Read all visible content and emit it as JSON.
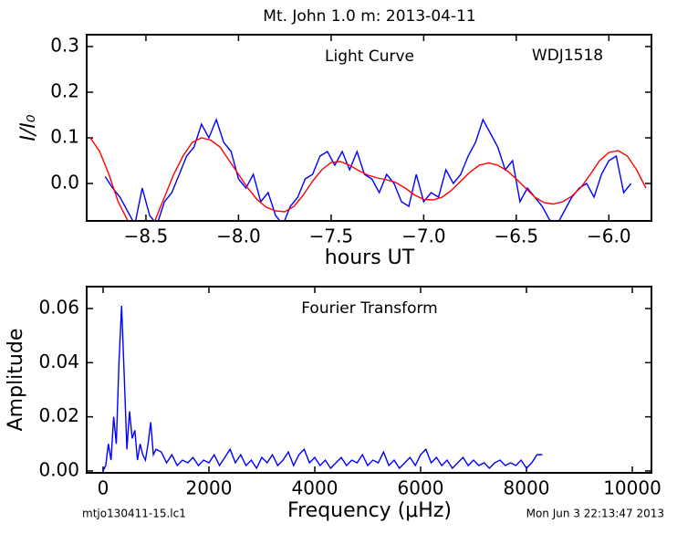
{
  "chart_data": [
    {
      "type": "line",
      "title": "Mt. John 1.0 m:  2013-04-11",
      "xlabel": "hours UT",
      "ylabel": "I/I₀",
      "annotations": [
        "Light Curve",
        "WDJ1518"
      ],
      "xlim": [
        -8.82,
        -5.77
      ],
      "ylim": [
        -0.082,
        0.326
      ],
      "xticks": [
        {
          "value": -8.5,
          "label": "−8.5"
        },
        {
          "value": -8.0,
          "label": "−8.0"
        },
        {
          "value": -7.5,
          "label": "−7.5"
        },
        {
          "value": -7.0,
          "label": "−7.0"
        },
        {
          "value": -6.5,
          "label": "−6.5"
        },
        {
          "value": -6.0,
          "label": "−6.0"
        }
      ],
      "yticks": [
        {
          "value": 0,
          "label": "0.0"
        },
        {
          "value": 0.1,
          "label": "0.1"
        },
        {
          "value": 0.2,
          "label": "0.2"
        },
        {
          "value": 0.3,
          "label": "0.3"
        }
      ],
      "series": [
        {
          "color": "#0000ff",
          "x": [
            -8.72,
            -8.68,
            -8.64,
            -8.6,
            -8.56,
            -8.52,
            -8.48,
            -8.44,
            -8.4,
            -8.36,
            -8.32,
            -8.28,
            -8.24,
            -8.2,
            -8.16,
            -8.12,
            -8.08,
            -8.04,
            -8.0,
            -7.96,
            -7.92,
            -7.88,
            -7.84,
            -7.8,
            -7.76,
            -7.72,
            -7.68,
            -7.64,
            -7.6,
            -7.56,
            -7.52,
            -7.48,
            -7.44,
            -7.4,
            -7.36,
            -7.32,
            -7.28,
            -7.24,
            -7.2,
            -7.16,
            -7.12,
            -7.08,
            -7.04,
            -7.0,
            -6.96,
            -6.92,
            -6.88,
            -6.84,
            -6.8,
            -6.76,
            -6.72,
            -6.68,
            -6.64,
            -6.6,
            -6.56,
            -6.52,
            -6.48,
            -6.44,
            -6.4,
            -6.36,
            -6.32,
            -6.28,
            -6.24,
            -6.2,
            -6.16,
            -6.12,
            -6.08,
            -6.04,
            -6.0,
            -5.96,
            -5.92,
            -5.88
          ],
          "values": [
            0.015,
            -0.01,
            -0.03,
            -0.06,
            -0.09,
            -0.01,
            -0.07,
            -0.09,
            -0.04,
            -0.02,
            0.02,
            0.06,
            0.08,
            0.13,
            0.1,
            0.14,
            0.09,
            0.07,
            0.01,
            -0.01,
            0.02,
            -0.04,
            -0.02,
            -0.07,
            -0.09,
            -0.05,
            -0.03,
            0.01,
            0.02,
            0.06,
            0.07,
            0.04,
            0.07,
            0.03,
            0.07,
            0.02,
            0.01,
            -0.02,
            0.02,
            0.0,
            -0.04,
            -0.05,
            0.02,
            -0.04,
            -0.02,
            -0.03,
            0.03,
            0.0,
            0.02,
            0.06,
            0.09,
            0.14,
            0.11,
            0.08,
            0.03,
            0.05,
            -0.04,
            -0.01,
            -0.03,
            -0.05,
            -0.08,
            -0.09,
            -0.06,
            -0.03,
            -0.01,
            0.0,
            -0.03,
            0.02,
            0.05,
            0.06,
            -0.02,
            0.0
          ]
        },
        {
          "color": "#ff0000",
          "x": [
            -8.8,
            -8.75,
            -8.7,
            -8.65,
            -8.6,
            -8.55,
            -8.5,
            -8.45,
            -8.4,
            -8.35,
            -8.3,
            -8.25,
            -8.2,
            -8.15,
            -8.1,
            -8.05,
            -8.0,
            -7.95,
            -7.9,
            -7.85,
            -7.8,
            -7.75,
            -7.7,
            -7.65,
            -7.6,
            -7.55,
            -7.5,
            -7.45,
            -7.4,
            -7.35,
            -7.3,
            -7.25,
            -7.2,
            -7.15,
            -7.1,
            -7.05,
            -7.0,
            -6.95,
            -6.9,
            -6.85,
            -6.8,
            -6.75,
            -6.7,
            -6.65,
            -6.6,
            -6.55,
            -6.5,
            -6.45,
            -6.4,
            -6.35,
            -6.3,
            -6.25,
            -6.2,
            -6.15,
            -6.1,
            -6.05,
            -6.0,
            -5.95,
            -5.9,
            -5.85,
            -5.8
          ],
          "values": [
            0.1,
            0.07,
            0.02,
            -0.04,
            -0.08,
            -0.11,
            -0.11,
            -0.08,
            -0.03,
            0.02,
            0.06,
            0.09,
            0.1,
            0.095,
            0.08,
            0.05,
            0.02,
            -0.01,
            -0.035,
            -0.052,
            -0.06,
            -0.062,
            -0.05,
            -0.025,
            0.005,
            0.03,
            0.046,
            0.048,
            0.04,
            0.028,
            0.018,
            0.012,
            0.008,
            0.002,
            -0.01,
            -0.025,
            -0.035,
            -0.036,
            -0.03,
            -0.015,
            0.005,
            0.025,
            0.04,
            0.045,
            0.04,
            0.028,
            0.01,
            -0.01,
            -0.03,
            -0.042,
            -0.045,
            -0.04,
            -0.028,
            -0.008,
            0.02,
            0.05,
            0.068,
            0.072,
            0.06,
            0.03,
            -0.01
          ]
        }
      ]
    },
    {
      "type": "line",
      "xlabel": "Frequency (μHz)",
      "ylabel": "Amplitude",
      "annotations": [
        "Fourier Transform"
      ],
      "xlim": [
        -310,
        10362
      ],
      "ylim": [
        -0.0007,
        0.0681
      ],
      "xticks": [
        0,
        2000,
        4000,
        6000,
        8000,
        10000
      ],
      "yticks": [
        {
          "value": 0,
          "label": "0.00"
        },
        {
          "value": 0.02,
          "label": "0.02"
        },
        {
          "value": 0.04,
          "label": "0.04"
        },
        {
          "value": 0.06,
          "label": "0.06"
        }
      ],
      "series": [
        {
          "color": "#0000ff",
          "x": [
            0,
            50,
            100,
            150,
            200,
            250,
            300,
            350,
            400,
            450,
            500,
            550,
            600,
            650,
            700,
            750,
            800,
            850,
            900,
            950,
            1000,
            1100,
            1200,
            1300,
            1400,
            1500,
            1600,
            1700,
            1800,
            1900,
            2000,
            2100,
            2200,
            2300,
            2400,
            2500,
            2600,
            2700,
            2800,
            2900,
            3000,
            3100,
            3200,
            3300,
            3400,
            3500,
            3600,
            3700,
            3800,
            3900,
            4000,
            4100,
            4200,
            4300,
            4400,
            4500,
            4600,
            4700,
            4800,
            4900,
            5000,
            5100,
            5200,
            5300,
            5400,
            5500,
            5600,
            5700,
            5800,
            5900,
            6000,
            6100,
            6200,
            6300,
            6400,
            6500,
            6600,
            6700,
            6800,
            6900,
            7000,
            7100,
            7200,
            7300,
            7400,
            7500,
            7600,
            7700,
            7800,
            7900,
            8000,
            8100,
            8200,
            8300
          ],
          "values": [
            0.0,
            0.002,
            0.01,
            0.004,
            0.02,
            0.01,
            0.04,
            0.061,
            0.035,
            0.008,
            0.022,
            0.012,
            0.015,
            0.004,
            0.01,
            0.006,
            0.004,
            0.01,
            0.018,
            0.006,
            0.008,
            0.007,
            0.003,
            0.006,
            0.002,
            0.004,
            0.003,
            0.005,
            0.002,
            0.004,
            0.003,
            0.006,
            0.002,
            0.005,
            0.008,
            0.003,
            0.006,
            0.002,
            0.004,
            0.001,
            0.005,
            0.003,
            0.006,
            0.002,
            0.004,
            0.007,
            0.002,
            0.006,
            0.008,
            0.003,
            0.005,
            0.002,
            0.004,
            0.001,
            0.003,
            0.005,
            0.002,
            0.004,
            0.003,
            0.006,
            0.002,
            0.004,
            0.003,
            0.007,
            0.002,
            0.004,
            0.001,
            0.003,
            0.005,
            0.002,
            0.006,
            0.008,
            0.003,
            0.005,
            0.002,
            0.004,
            0.001,
            0.003,
            0.005,
            0.002,
            0.004,
            0.002,
            0.003,
            0.001,
            0.003,
            0.004,
            0.002,
            0.003,
            0.002,
            0.004,
            0.001,
            0.003,
            0.006,
            0.006
          ]
        }
      ]
    }
  ],
  "footer": {
    "left": "mtjo130411-15.lc1",
    "right": "Mon Jun  3 22:13:47 2013"
  }
}
